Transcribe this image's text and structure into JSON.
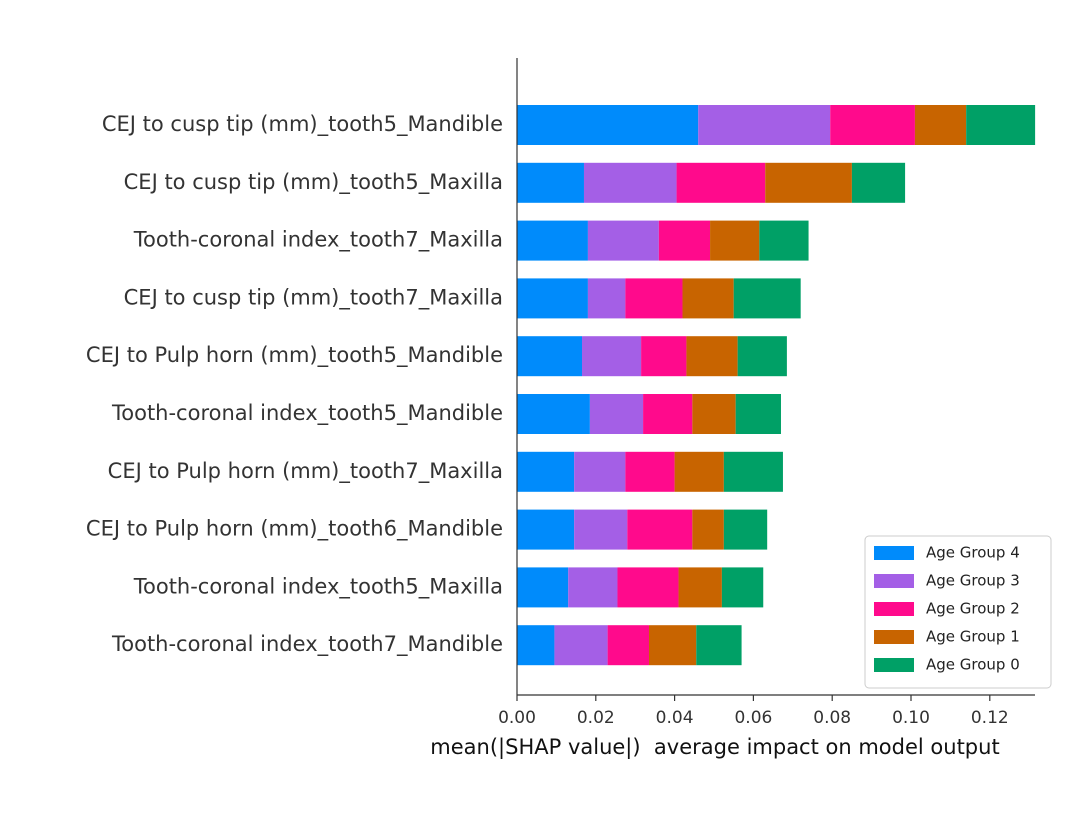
{
  "chart_data": {
    "type": "bar",
    "orientation": "horizontal",
    "stacked": true,
    "title": "",
    "xlabel": "mean(|SHAP value|)  average impact on model output",
    "ylabel": "",
    "xlim": [
      0.0,
      0.132
    ],
    "xticks": [
      "0.00",
      "0.02",
      "0.04",
      "0.06",
      "0.08",
      "0.10",
      "0.12"
    ],
    "grid": false,
    "legend_position": "lower-right",
    "categories": [
      "CEJ to cusp tip (mm)_tooth5_Mandible",
      "CEJ to cusp tip (mm)_tooth5_Maxilla",
      "Tooth-coronal index_tooth7_Maxilla",
      "CEJ to cusp tip (mm)_tooth7_Maxilla",
      "CEJ to Pulp horn (mm)_tooth5_Mandible",
      "Tooth-coronal index_tooth5_Mandible",
      "CEJ to Pulp horn (mm)_tooth7_Maxilla",
      "CEJ to Pulp horn (mm)_tooth6_Mandible",
      "Tooth-coronal index_tooth5_Maxilla",
      "Tooth-coronal index_tooth7_Mandible"
    ],
    "series": [
      {
        "name": "Age Group 4",
        "color": "#008bfb",
        "values": [
          0.046,
          0.017,
          0.018,
          0.018,
          0.0165,
          0.0185,
          0.0145,
          0.0145,
          0.013,
          0.0095
        ]
      },
      {
        "name": "Age Group 3",
        "color": "#a45fe6",
        "values": [
          0.0335,
          0.0235,
          0.018,
          0.0095,
          0.015,
          0.0135,
          0.013,
          0.0135,
          0.0125,
          0.0135
        ]
      },
      {
        "name": "Age Group 2",
        "color": "#ff0a8c",
        "values": [
          0.0215,
          0.0225,
          0.013,
          0.0145,
          0.0115,
          0.0125,
          0.0125,
          0.0165,
          0.0155,
          0.0105
        ]
      },
      {
        "name": "Age Group 1",
        "color": "#c86400",
        "values": [
          0.013,
          0.022,
          0.0125,
          0.013,
          0.013,
          0.011,
          0.0125,
          0.008,
          0.011,
          0.012
        ]
      },
      {
        "name": "Age Group 0",
        "color": "#00a066",
        "values": [
          0.0175,
          0.0135,
          0.0125,
          0.017,
          0.0125,
          0.0115,
          0.015,
          0.011,
          0.0105,
          0.0115
        ]
      }
    ],
    "legend_order": [
      "Age Group 4",
      "Age Group 3",
      "Age Group 2",
      "Age Group 1",
      "Age Group 0"
    ]
  }
}
